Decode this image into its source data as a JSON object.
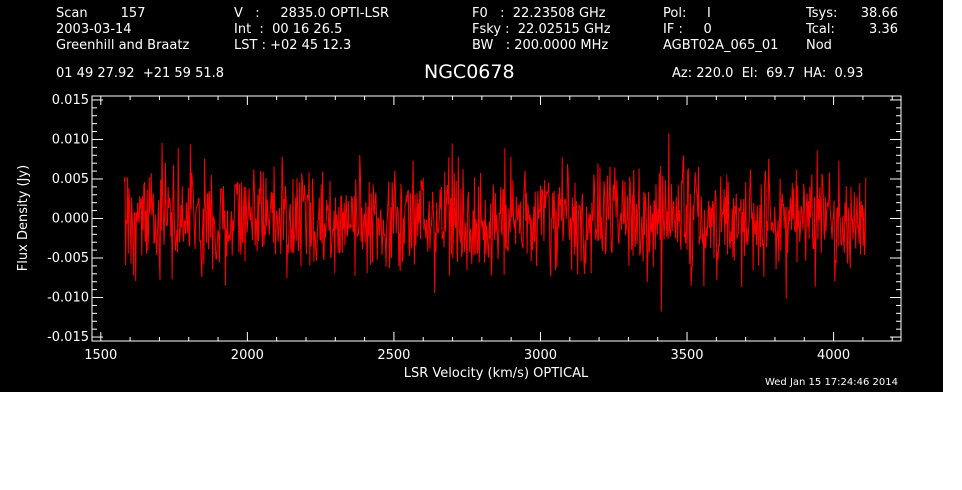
{
  "header": {
    "col1": [
      "Scan        157",
      "2003-03-14",
      "Greenhill and Braatz"
    ],
    "col2": [
      "V   :     2835.0 OPTI-LSR",
      "Int  :  00 16 26.5",
      "LST : +02 45 12.3"
    ],
    "col3": [
      "F0   :  22.23508 GHz",
      "Fsky :  22.02515 GHz",
      "BW   : 200.0000 MHz"
    ],
    "col4": [
      "Pol:     I",
      "IF :     0",
      "AGBT02A_065_01"
    ],
    "col5": [
      "Tsys:",
      "Tcal:",
      "Nod"
    ],
    "col6": [
      "38.66",
      "3.36",
      ""
    ],
    "coords": "01 49 27.92  +21 59 51.8",
    "source": "NGC0678",
    "azel": "Az: 220.0  El:  69.7  HA:  0.93",
    "timestamp": "Wed Jan 15 17:24:46 2014"
  },
  "colors": {
    "background": "#000000",
    "foreground": "#ffffff",
    "series": "#ff0000"
  },
  "chart_data": {
    "type": "line",
    "title": "NGC0678",
    "xlabel": "LSR Velocity (km/s) OPTICAL",
    "ylabel": "Flux Density (Jy)",
    "xlim": [
      1470,
      4230
    ],
    "ylim": [
      -0.0155,
      0.0155
    ],
    "xticks": [
      1500,
      2000,
      2500,
      3000,
      3500,
      4000
    ],
    "xtick_labels": [
      "1500",
      "2000",
      "2500",
      "3000",
      "3500",
      "4000"
    ],
    "yticks": [
      -0.015,
      -0.01,
      -0.005,
      0.0,
      0.005,
      0.01,
      0.015
    ],
    "ytick_labels": [
      "-0.015",
      "-0.010",
      "-0.005",
      "0.000",
      "0.005",
      "0.010",
      "0.015"
    ],
    "grid": false,
    "legend": "none",
    "series": [
      {
        "x_range": [
          1580,
          4110
        ],
        "points": 1100,
        "approx_mean": 0.0,
        "approx_rms": 0.0035,
        "approx_min": -0.0135,
        "approx_max": 0.013
      }
    ]
  }
}
